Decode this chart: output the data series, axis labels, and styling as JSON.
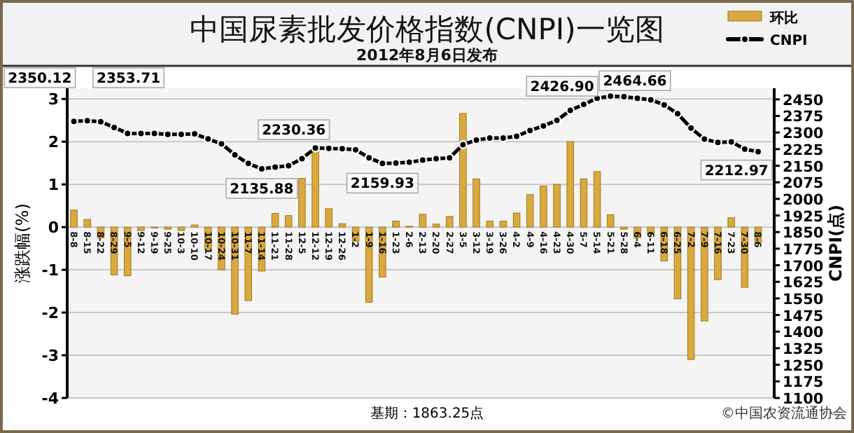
{
  "chart_data": {
    "type": "bar",
    "title": "中国尿素批发价格指数(CNPI)一览图",
    "subtitle": "2012年8月6日发布",
    "ylabel": "涨跌幅(%)",
    "y2label": "CNPI(点)",
    "annotations": [
      "基期：1863.25点",
      "©中国农资流通协会"
    ],
    "categories": [
      "8-8",
      "8-15",
      "8-22",
      "8-29",
      "9-5",
      "9-12",
      "9-19",
      "9-25",
      "10-3",
      "10-10",
      "10-17",
      "10-24",
      "10-31",
      "11-7",
      "11-14",
      "11-21",
      "11-28",
      "12-5",
      "12-12",
      "12-19",
      "12-26",
      "1-2",
      "1-9",
      "1-16",
      "1-23",
      "2-6",
      "2-13",
      "2-20",
      "2-27",
      "3-5",
      "3-12",
      "3-19",
      "3-26",
      "4-2",
      "4-9",
      "4-16",
      "4-23",
      "4-30",
      "5-7",
      "5-14",
      "5-21",
      "5-28",
      "6-4",
      "6-11",
      "6-18",
      "6-25",
      "7-2",
      "7-9",
      "7-16",
      "7-23",
      "7-30",
      "8-6"
    ],
    "series": [
      {
        "name": "环比",
        "color": "#d9a93f",
        "values": [
          0.4,
          0.18,
          -0.25,
          -1.12,
          -1.14,
          -0.08,
          -0.02,
          -0.05,
          -0.08,
          0.05,
          -0.52,
          -1.0,
          -2.04,
          -1.72,
          -1.03,
          0.32,
          0.27,
          1.14,
          1.8,
          0.43,
          0.08,
          -0.33,
          -1.76,
          -1.17,
          0.14,
          0.02,
          0.3,
          0.07,
          0.25,
          2.66,
          1.13,
          0.14,
          0.14,
          0.33,
          0.76,
          0.96,
          1.0,
          2.0,
          1.13,
          1.3,
          0.29,
          -0.05,
          -0.25,
          -0.17,
          -0.79,
          -1.68,
          -3.1,
          -2.2,
          -1.23,
          0.22,
          -1.41,
          -0.36
        ]
      },
      {
        "name": "CNPI",
        "type": "line",
        "axis": "y2",
        "color": "#000000",
        "values": [
          2350.12,
          2353.71,
          2349,
          2323,
          2296,
          2296,
          2296,
          2292,
          2292,
          2294,
          2271,
          2249,
          2199,
          2160,
          2135.88,
          2144,
          2150,
          2182,
          2230.36,
          2228,
          2227,
          2222,
          2186,
          2159.93,
          2162,
          2166,
          2175,
          2182,
          2186,
          2245,
          2266,
          2275,
          2275,
          2283,
          2309,
          2330,
          2355,
          2400,
          2426.9,
          2455,
          2464.66,
          2462,
          2455,
          2448,
          2425,
          2385,
          2320,
          2270,
          2255,
          2258,
          2225,
          2212.97
        ],
        "value_labels": [
          "2350.12",
          "2353.71",
          null,
          null,
          null,
          null,
          null,
          null,
          null,
          null,
          null,
          null,
          null,
          null,
          "2135.88",
          null,
          null,
          null,
          "2230.36",
          null,
          null,
          null,
          null,
          "2159.93",
          null,
          null,
          null,
          null,
          null,
          null,
          null,
          null,
          null,
          null,
          null,
          null,
          null,
          null,
          "2426.90",
          null,
          "2464.66",
          null,
          null,
          null,
          null,
          null,
          null,
          null,
          null,
          null,
          null,
          "2212.97"
        ]
      }
    ],
    "ylim": [
      -4,
      3.25
    ],
    "yticks": [
      -4,
      -3,
      -2,
      -1,
      0,
      1,
      2,
      3
    ],
    "y2lim": [
      1100,
      2500
    ],
    "y2ticks": [
      1100,
      1175,
      1250,
      1325,
      1400,
      1475,
      1550,
      1625,
      1700,
      1775,
      1850,
      1925,
      2000,
      2075,
      2150,
      2225,
      2300,
      2375,
      2450
    ],
    "grid": "y",
    "legend": "top right",
    "marker": "circle"
  }
}
